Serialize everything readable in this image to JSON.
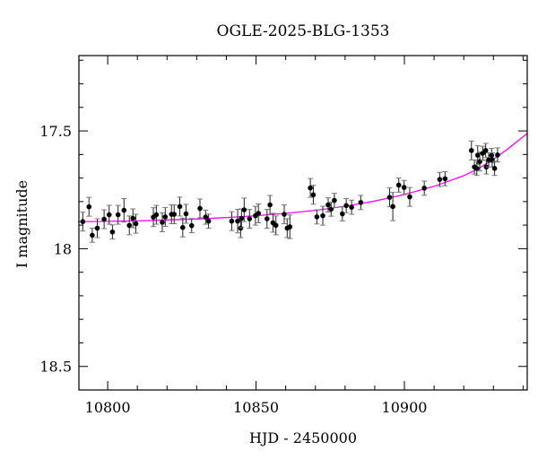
{
  "chart_data": {
    "type": "scatter",
    "title": "OGLE-2025-BLG-1353",
    "xlabel": "HJD - 2450000",
    "ylabel": "I magnitude",
    "xlim": [
      10790.3,
      10941.4
    ],
    "ylim": [
      18.6,
      17.18
    ],
    "y_inverted": true,
    "xticks": [
      10800,
      10850,
      10900
    ],
    "xtick_labels": [
      "10800",
      "10850",
      "10900"
    ],
    "yticks": [
      17.5,
      18,
      18.5
    ],
    "ytick_labels": [
      "17.5",
      "18",
      "18.5"
    ],
    "grid": false,
    "colors": {
      "points": "#000000",
      "model": "#ff00ff"
    },
    "series": [
      {
        "name": "data",
        "points": [
          [
            10791.6,
            17.885,
            0.04
          ],
          [
            10793.7,
            17.822,
            0.04
          ],
          [
            10794.8,
            17.943,
            0.03
          ],
          [
            10796.5,
            17.913,
            0.04
          ],
          [
            10798.8,
            17.875,
            0.04
          ],
          [
            10800.5,
            17.856,
            0.04
          ],
          [
            10801.6,
            17.929,
            0.03
          ],
          [
            10803.5,
            17.856,
            0.04
          ],
          [
            10805.5,
            17.837,
            0.05
          ],
          [
            10807.3,
            17.901,
            0.04
          ],
          [
            10808.5,
            17.871,
            0.04
          ],
          [
            10809.5,
            17.894,
            0.04
          ],
          [
            10815.4,
            17.866,
            0.04
          ],
          [
            10816.4,
            17.856,
            0.04
          ],
          [
            10818.4,
            17.888,
            0.04
          ],
          [
            10819.4,
            17.865,
            0.04
          ],
          [
            10821.5,
            17.854,
            0.04
          ],
          [
            10822.4,
            17.854,
            0.04
          ],
          [
            10824.3,
            17.821,
            0.04
          ],
          [
            10825.3,
            17.91,
            0.04
          ],
          [
            10826.4,
            17.852,
            0.04
          ],
          [
            10828.3,
            17.902,
            0.03
          ],
          [
            10831.1,
            17.829,
            0.04
          ],
          [
            10833.0,
            17.866,
            0.03
          ],
          [
            10834.0,
            17.883,
            0.03
          ],
          [
            10841.8,
            17.883,
            0.04
          ],
          [
            10843.8,
            17.883,
            0.05
          ],
          [
            10844.8,
            17.913,
            0.04
          ],
          [
            10845.1,
            17.871,
            0.04
          ],
          [
            10846.0,
            17.835,
            0.05
          ],
          [
            10847.8,
            17.873,
            0.04
          ],
          [
            10849.8,
            17.86,
            0.04
          ],
          [
            10850.8,
            17.85,
            0.04
          ],
          [
            10853.7,
            17.873,
            0.04
          ],
          [
            10854.7,
            17.814,
            0.04
          ],
          [
            10855.7,
            17.89,
            0.04
          ],
          [
            10856.7,
            17.901,
            0.04
          ],
          [
            10859.5,
            17.854,
            0.04
          ],
          [
            10860.5,
            17.913,
            0.04
          ],
          [
            10861.4,
            17.907,
            0.05
          ],
          [
            10868.3,
            17.742,
            0.04
          ],
          [
            10869.3,
            17.771,
            0.04
          ],
          [
            10870.5,
            17.865,
            0.03
          ],
          [
            10872.5,
            17.86,
            0.04
          ],
          [
            10874.3,
            17.814,
            0.03
          ],
          [
            10875.3,
            17.832,
            0.03
          ],
          [
            10876.4,
            17.795,
            0.03
          ],
          [
            10879.1,
            17.852,
            0.03
          ],
          [
            10880.4,
            17.817,
            0.03
          ],
          [
            10882.2,
            17.824,
            0.03
          ],
          [
            10885.3,
            17.804,
            0.03
          ],
          [
            10895.0,
            17.782,
            0.04
          ],
          [
            10896.1,
            17.821,
            0.06
          ],
          [
            10898.1,
            17.73,
            0.03
          ],
          [
            10899.9,
            17.74,
            0.03
          ],
          [
            10901.8,
            17.78,
            0.04
          ],
          [
            10906.7,
            17.743,
            0.03
          ],
          [
            10911.9,
            17.706,
            0.03
          ],
          [
            10913.7,
            17.703,
            0.03
          ],
          [
            10922.6,
            17.583,
            0.04
          ],
          [
            10923.6,
            17.653,
            0.03
          ],
          [
            10924.4,
            17.659,
            0.03
          ],
          [
            10924.7,
            17.603,
            0.04
          ],
          [
            10925.4,
            17.63,
            0.04
          ],
          [
            10926.4,
            17.595,
            0.03
          ],
          [
            10927.4,
            17.583,
            0.03
          ],
          [
            10927.6,
            17.653,
            0.03
          ],
          [
            10928.4,
            17.623,
            0.03
          ],
          [
            10929.4,
            17.604,
            0.03
          ],
          [
            10929.6,
            17.623,
            0.03
          ],
          [
            10930.4,
            17.659,
            0.03
          ],
          [
            10931.4,
            17.602,
            0.03
          ]
        ]
      },
      {
        "name": "model",
        "points": [
          [
            10790,
            17.886
          ],
          [
            10800,
            17.884
          ],
          [
            10810,
            17.882
          ],
          [
            10820,
            17.878
          ],
          [
            10830,
            17.874
          ],
          [
            10840,
            17.868
          ],
          [
            10850,
            17.86
          ],
          [
            10860,
            17.85
          ],
          [
            10870,
            17.837
          ],
          [
            10880,
            17.82
          ],
          [
            10890,
            17.798
          ],
          [
            10900,
            17.77
          ],
          [
            10910,
            17.735
          ],
          [
            10920,
            17.69
          ],
          [
            10925,
            17.66
          ],
          [
            10930,
            17.62
          ],
          [
            10935,
            17.575
          ],
          [
            10941.4,
            17.51
          ]
        ]
      }
    ]
  }
}
